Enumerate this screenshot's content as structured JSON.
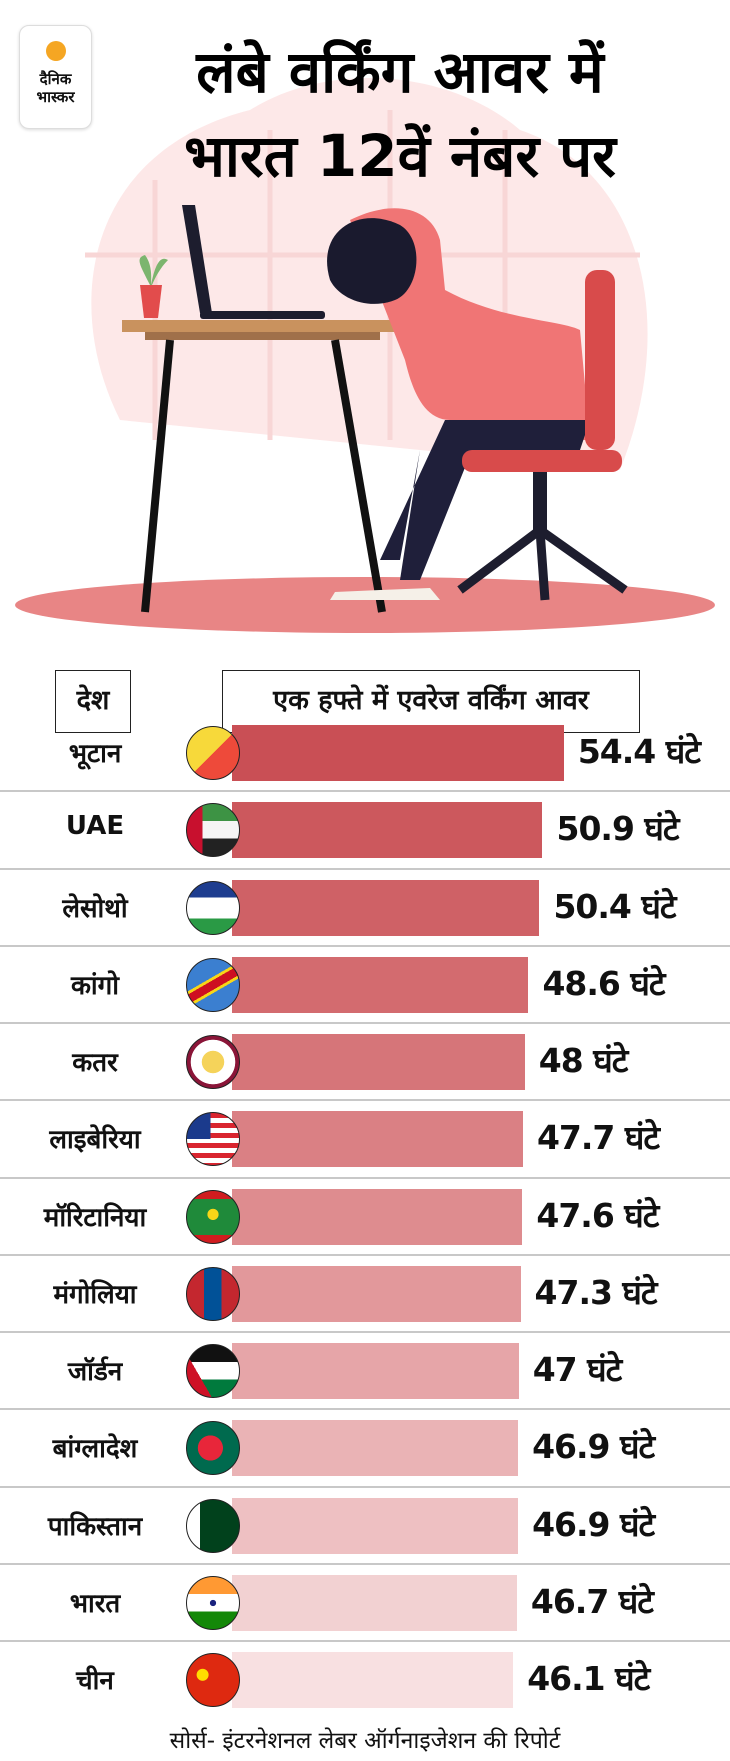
{
  "logo": {
    "line1": "दैनिक",
    "line2": "भास्कर"
  },
  "title": {
    "line1": "लंबे वर्किंग आवर में",
    "line2": "भारत 12वें नंबर पर"
  },
  "chart_data": {
    "type": "bar",
    "orientation": "horizontal",
    "title": "लंबे वर्किंग आवर में भारत 12वें नंबर पर",
    "category_header": "देश",
    "value_header": "एक हफ्ते में एवरेज वर्किंग आवर",
    "unit": "घंटे",
    "categories": [
      "भूटान",
      "UAE",
      "लेसोथो",
      "कांगो",
      "कतर",
      "लाइबेरिया",
      "मॉरिटानिया",
      "मंगोलिया",
      "जॉर्डन",
      "बांग्लादेश",
      "पाकिस्तान",
      "भारत",
      "चीन"
    ],
    "values": [
      54.4,
      50.9,
      50.4,
      48.6,
      48,
      47.7,
      47.6,
      47.3,
      47,
      46.9,
      46.9,
      46.7,
      46.1
    ],
    "value_labels": [
      "54.4 घंटे",
      "50.9 घंटे",
      "50.4 घंटे",
      "48.6 घंटे",
      "48 घंटे",
      "47.7 घंटे",
      "47.6 घंटे",
      "47.3 घंटे",
      "47 घंटे",
      "46.9 घंटे",
      "46.9  घंटे",
      "46.7 घंटे",
      "46.1 घंटे"
    ],
    "flags": [
      "bhutan-flag-icon",
      "uae-flag-icon",
      "lesotho-flag-icon",
      "congo-flag-icon",
      "qatar-flag-icon",
      "liberia-flag-icon",
      "mauritania-flag-icon",
      "mongolia-flag-icon",
      "jordan-flag-icon",
      "bangladesh-flag-icon",
      "pakistan-flag-icon",
      "india-flag-icon",
      "china-flag-icon"
    ],
    "bar_colors": [
      "#c94f55",
      "#cc585d",
      "#cf6166",
      "#d36b6f",
      "#d67579",
      "#da8084",
      "#de8c8f",
      "#e2989b",
      "#e6a5a8",
      "#eab3b5",
      "#eec0c2",
      "#f2d1d2",
      "#f8e0e1"
    ]
  },
  "source": "सोर्स-  इंटरनेशनल लेबर ऑर्गनाइजेशन की रिपोर्ट"
}
